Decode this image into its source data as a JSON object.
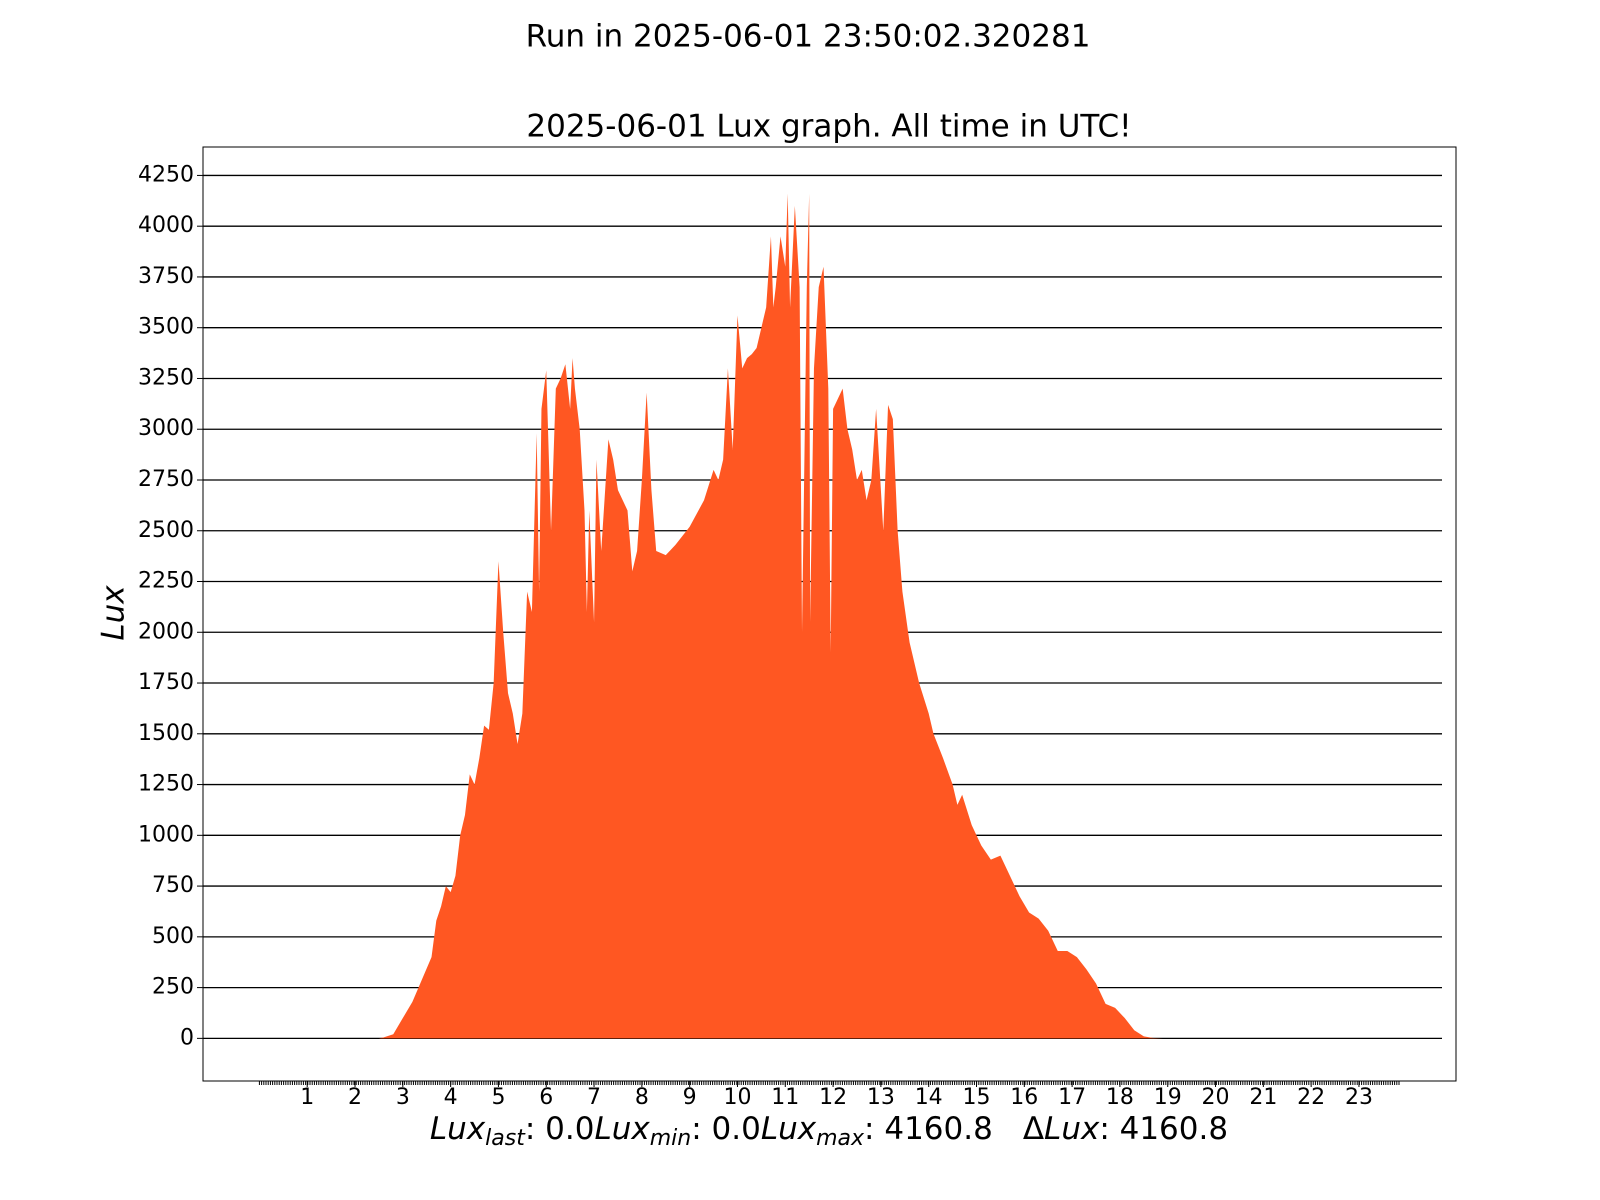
{
  "chart_data": {
    "type": "area",
    "suptitle": "Run in 2025-06-01 23:50:02.320281",
    "title": "2025-06-01 Lux graph. All time in UTC!",
    "ylabel": "Lux",
    "xlabel_parts": [
      {
        "symbol": "Lux",
        "sub": "last",
        "rest": ": 0.0"
      },
      {
        "symbol": "Lux",
        "sub": "min",
        "rest": ": 0.0"
      },
      {
        "symbol": "Lux",
        "sub": "max",
        "rest": ": 4160.8"
      },
      {
        "prefix": "Δ",
        "symbol": "Lux",
        "rest": ": 4160.8"
      }
    ],
    "color": "#ff5722",
    "grid": true,
    "xlim": [
      -1.18,
      25.03
    ],
    "ylim": [
      -210,
      4390
    ],
    "xticks": [
      1,
      2,
      3,
      4,
      5,
      6,
      7,
      8,
      9,
      10,
      11,
      12,
      13,
      14,
      15,
      16,
      17,
      18,
      19,
      20,
      21,
      22,
      23
    ],
    "yticks": [
      0,
      250,
      500,
      750,
      1000,
      1250,
      1500,
      1750,
      2000,
      2250,
      2500,
      2750,
      3000,
      3250,
      3500,
      3750,
      4000,
      4250
    ],
    "x": [
      0,
      2.5,
      2.6,
      2.8,
      3.0,
      3.2,
      3.4,
      3.6,
      3.7,
      3.8,
      3.9,
      4.0,
      4.1,
      4.2,
      4.3,
      4.4,
      4.5,
      4.6,
      4.7,
      4.8,
      4.9,
      5.0,
      5.1,
      5.2,
      5.3,
      5.4,
      5.5,
      5.6,
      5.7,
      5.8,
      5.85,
      5.9,
      6.0,
      6.1,
      6.2,
      6.3,
      6.4,
      6.5,
      6.55,
      6.6,
      6.7,
      6.8,
      6.85,
      6.9,
      7.0,
      7.05,
      7.15,
      7.3,
      7.4,
      7.5,
      7.7,
      7.8,
      7.9,
      8.0,
      8.1,
      8.2,
      8.3,
      8.5,
      8.7,
      9.0,
      9.3,
      9.5,
      9.6,
      9.7,
      9.8,
      9.9,
      10.0,
      10.1,
      10.2,
      10.3,
      10.4,
      10.5,
      10.6,
      10.7,
      10.75,
      10.8,
      10.9,
      11.0,
      11.05,
      11.1,
      11.2,
      11.3,
      11.35,
      11.45,
      11.5,
      11.52,
      11.6,
      11.7,
      11.8,
      11.9,
      11.95,
      12.0,
      12.1,
      12.2,
      12.3,
      12.4,
      12.5,
      12.6,
      12.7,
      12.8,
      12.9,
      13.0,
      13.05,
      13.15,
      13.25,
      13.35,
      13.45,
      13.6,
      13.8,
      14.0,
      14.1,
      14.3,
      14.5,
      14.6,
      14.7,
      14.9,
      15.1,
      15.3,
      15.5,
      15.7,
      15.9,
      16.1,
      16.3,
      16.5,
      16.7,
      16.9,
      17.1,
      17.3,
      17.5,
      17.7,
      17.9,
      18.1,
      18.3,
      18.5,
      18.7,
      18.9,
      23.85
    ],
    "values": [
      0,
      0,
      5,
      20,
      100,
      180,
      290,
      400,
      580,
      650,
      750,
      720,
      800,
      1000,
      1100,
      1300,
      1250,
      1380,
      1540,
      1520,
      1750,
      2350,
      2000,
      1700,
      1600,
      1450,
      1600,
      2200,
      2100,
      2980,
      2200,
      3100,
      3290,
      2500,
      3200,
      3250,
      3320,
      3100,
      3350,
      3200,
      3000,
      2600,
      2100,
      2600,
      2050,
      2850,
      2400,
      2950,
      2850,
      2700,
      2600,
      2300,
      2400,
      2750,
      3180,
      2700,
      2400,
      2380,
      2430,
      2520,
      2650,
      2800,
      2750,
      2850,
      3300,
      2900,
      3560,
      3300,
      3350,
      3370,
      3400,
      3500,
      3600,
      3950,
      3600,
      3700,
      3950,
      3800,
      4160.8,
      3600,
      4100,
      3700,
      2000,
      3700,
      4160,
      2050,
      3300,
      3700,
      3800,
      3200,
      1900,
      3100,
      3150,
      3200,
      3000,
      2900,
      2750,
      2800,
      2650,
      2750,
      3100,
      2700,
      2500,
      3120,
      3050,
      2500,
      2200,
      1950,
      1750,
      1600,
      1500,
      1380,
      1250,
      1150,
      1200,
      1050,
      950,
      880,
      900,
      800,
      700,
      620,
      590,
      530,
      430,
      430,
      400,
      340,
      270,
      170,
      150,
      100,
      40,
      10,
      2,
      0,
      0
    ]
  }
}
